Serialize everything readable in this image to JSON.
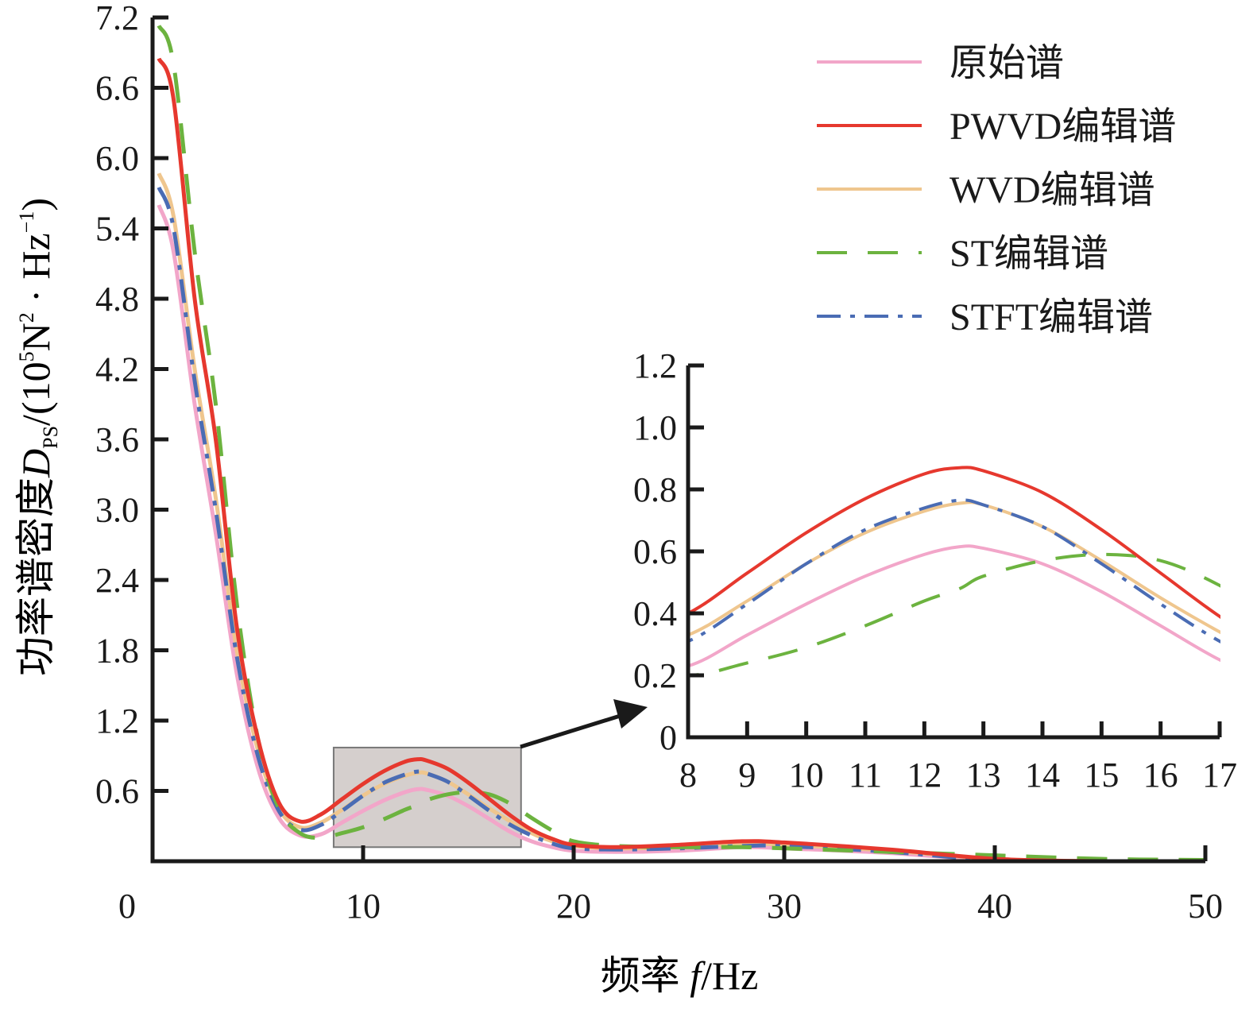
{
  "chart_data": {
    "type": "line",
    "xlabel": {
      "main": "频率 ",
      "var": "f",
      "unit": "/Hz"
    },
    "ylabel": {
      "main": "功率谱密度",
      "var": "D",
      "sub": "PS",
      "rest1": "/(10",
      "sup1": "5",
      "rest2": "N",
      "sup2": "2",
      "rest3": " · Hz",
      "sup3": "−1",
      "rest4": ")"
    },
    "xlim": [
      0,
      50
    ],
    "ylim": [
      0,
      7.2
    ],
    "xticks": [
      "0",
      "10",
      "20",
      "30",
      "40",
      "50"
    ],
    "yticks": [
      "0.6",
      "1.2",
      "1.8",
      "2.4",
      "3.0",
      "3.6",
      "4.2",
      "4.8",
      "5.4",
      "6.0",
      "6.6",
      "7.2"
    ],
    "legend_position": "top-right",
    "x": [
      0.3,
      1,
      2,
      3,
      4,
      5,
      6,
      7,
      8,
      9,
      10,
      11,
      12,
      12.6,
      13,
      14,
      15,
      16,
      17,
      18,
      19,
      20,
      22,
      25,
      28,
      30,
      35,
      40,
      45,
      50
    ],
    "series": [
      {
        "name": "原始谱",
        "color": "#f2a6c9",
        "dash": "",
        "values": [
          5.6,
          5.2,
          3.9,
          2.8,
          1.6,
          0.8,
          0.37,
          0.22,
          0.23,
          0.33,
          0.43,
          0.52,
          0.59,
          0.615,
          0.61,
          0.56,
          0.47,
          0.36,
          0.25,
          0.17,
          0.12,
          0.09,
          0.08,
          0.09,
          0.12,
          0.11,
          0.07,
          0.01,
          0,
          0
        ]
      },
      {
        "name": "PWVD编辑谱",
        "color": "#e6382e",
        "dash": "",
        "values": [
          6.85,
          6.5,
          4.8,
          3.6,
          2.0,
          1.05,
          0.5,
          0.34,
          0.4,
          0.53,
          0.66,
          0.77,
          0.85,
          0.87,
          0.86,
          0.79,
          0.67,
          0.53,
          0.39,
          0.27,
          0.19,
          0.14,
          0.12,
          0.14,
          0.17,
          0.16,
          0.1,
          0.02,
          0,
          0
        ]
      },
      {
        "name": "WVD编辑谱",
        "color": "#efc68e",
        "dash": "",
        "values": [
          5.87,
          5.5,
          4.2,
          3.1,
          1.8,
          0.95,
          0.45,
          0.29,
          0.33,
          0.44,
          0.56,
          0.66,
          0.73,
          0.755,
          0.75,
          0.68,
          0.57,
          0.45,
          0.34,
          0.24,
          0.17,
          0.13,
          0.11,
          0.12,
          0.15,
          0.14,
          0.09,
          0.02,
          0,
          0
        ]
      },
      {
        "name": "ST编辑谱",
        "color": "#6cb33f",
        "dash": "38 26",
        "values": [
          7.13,
          6.8,
          5.2,
          3.9,
          2.2,
          1.05,
          0.45,
          0.24,
          0.2,
          0.24,
          0.29,
          0.36,
          0.44,
          0.48,
          0.52,
          0.57,
          0.59,
          0.57,
          0.49,
          0.37,
          0.26,
          0.17,
          0.13,
          0.12,
          0.12,
          0.11,
          0.08,
          0.05,
          0.02,
          0.01
        ]
      },
      {
        "name": "STFT编辑谱",
        "color": "#4a6cb4",
        "dash": "30 12 6 12",
        "values": [
          5.75,
          5.4,
          4.1,
          3.0,
          1.75,
          0.9,
          0.43,
          0.27,
          0.31,
          0.43,
          0.56,
          0.67,
          0.74,
          0.765,
          0.75,
          0.68,
          0.56,
          0.43,
          0.31,
          0.22,
          0.15,
          0.11,
          0.1,
          0.11,
          0.13,
          0.13,
          0.08,
          0.01,
          0,
          0
        ]
      }
    ],
    "inset": {
      "xlim": [
        8,
        17
      ],
      "ylim": [
        0,
        1.2
      ],
      "xticks": [
        "8",
        "9",
        "10",
        "11",
        "12",
        "13",
        "14",
        "15",
        "16",
        "17"
      ],
      "yticks": [
        "0",
        "0.2",
        "0.4",
        "0.6",
        "0.8",
        "1.0",
        "1.2"
      ],
      "zoom_box": {
        "x": [
          8.6,
          17.5
        ],
        "y": [
          0.12,
          0.97
        ]
      }
    }
  }
}
